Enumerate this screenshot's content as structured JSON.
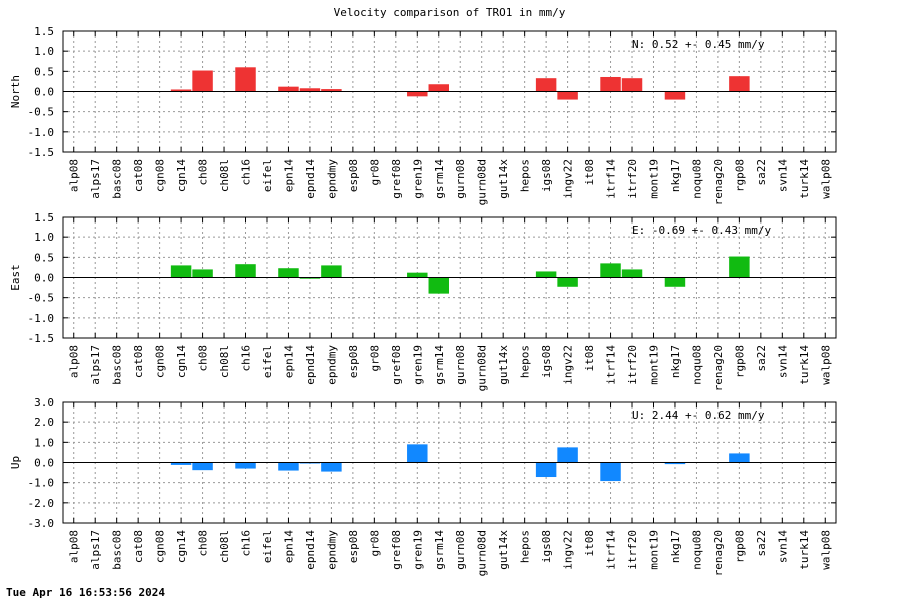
{
  "chart_data": [
    {
      "type": "bar",
      "title": "Velocity comparison of TRO1 in mm/y",
      "ylabel": "North",
      "ylim": [
        -1.5,
        1.5
      ],
      "yticks": [
        "1.5",
        "1.0",
        "0.5",
        "0.0",
        "-0.5",
        "-1.0",
        "-1.5"
      ],
      "annotation": "N:   0.52 +-  0.45 mm/y",
      "color": "#ee3333",
      "grid": true,
      "categories": [
        "alp08",
        "alps17",
        "basc08",
        "cat08",
        "cgn08",
        "cgn14",
        "ch08",
        "ch08l",
        "ch16",
        "eifel",
        "epn14",
        "epnd14",
        "epndmy",
        "esp08",
        "gr08",
        "gref08",
        "gren19",
        "gsrm14",
        "gurn08",
        "gurn08d",
        "gut14x",
        "hepos",
        "igs08",
        "ingv22",
        "it08",
        "itrf14",
        "itrf20",
        "mont19",
        "nkg17",
        "noqu08",
        "renag20",
        "rgp08",
        "sa22",
        "svn14",
        "turk14",
        "walp08"
      ],
      "values": [
        0,
        0,
        0,
        0,
        0,
        0.05,
        0.52,
        0,
        0.6,
        0,
        0.12,
        0.08,
        0.06,
        0,
        0,
        0,
        -0.12,
        0.18,
        0,
        0,
        0,
        0,
        0.33,
        -0.2,
        0,
        0.36,
        0.33,
        0,
        -0.2,
        0,
        0,
        0.38,
        0,
        0,
        0,
        0
      ]
    },
    {
      "type": "bar",
      "title": "",
      "ylabel": "East",
      "ylim": [
        -1.5,
        1.5
      ],
      "yticks": [
        "1.5",
        "1.0",
        "0.5",
        "0.0",
        "-0.5",
        "-1.0",
        "-1.5"
      ],
      "annotation": "E:  -0.69 +-  0.43 mm/y",
      "color": "#11bb11",
      "grid": true,
      "categories": [
        "alp08",
        "alps17",
        "basc08",
        "cat08",
        "cgn08",
        "cgn14",
        "ch08",
        "ch08l",
        "ch16",
        "eifel",
        "epn14",
        "epnd14",
        "epndmy",
        "esp08",
        "gr08",
        "gref08",
        "gren19",
        "gsrm14",
        "gurn08",
        "gurn08d",
        "gut14x",
        "hepos",
        "igs08",
        "ingv22",
        "it08",
        "itrf14",
        "itrf20",
        "mont19",
        "nkg17",
        "noqu08",
        "renag20",
        "rgp08",
        "sa22",
        "svn14",
        "turk14",
        "walp08"
      ],
      "values": [
        0,
        0,
        0,
        0,
        0,
        0.3,
        0.2,
        0,
        0.33,
        0,
        0.23,
        -0.03,
        0.3,
        0,
        0,
        0,
        0.12,
        -0.4,
        0,
        0,
        0,
        0,
        0.15,
        -0.23,
        0,
        0.35,
        0.2,
        0,
        -0.23,
        0,
        0,
        0.52,
        0,
        0,
        0,
        0
      ]
    },
    {
      "type": "bar",
      "title": "",
      "ylabel": "Up",
      "ylim": [
        -3.0,
        3.0
      ],
      "yticks": [
        "3.0",
        "2.0",
        "1.0",
        "0.0",
        "-1.0",
        "-2.0",
        "-3.0"
      ],
      "annotation": "U:   2.44 +-  0.62 mm/y",
      "color": "#1188ff",
      "grid": true,
      "categories": [
        "alp08",
        "alps17",
        "basc08",
        "cat08",
        "cgn08",
        "cgn14",
        "ch08",
        "ch08l",
        "ch16",
        "eifel",
        "epn14",
        "epnd14",
        "epndmy",
        "esp08",
        "gr08",
        "gref08",
        "gren19",
        "gsrm14",
        "gurn08",
        "gurn08d",
        "gut14x",
        "hepos",
        "igs08",
        "ingv22",
        "it08",
        "itrf14",
        "itrf20",
        "mont19",
        "nkg17",
        "noqu08",
        "renag20",
        "rgp08",
        "sa22",
        "svn14",
        "turk14",
        "walp08"
      ],
      "values": [
        0,
        0,
        0,
        0,
        0,
        -0.12,
        -0.38,
        0,
        -0.3,
        0,
        -0.4,
        -0.05,
        -0.45,
        0,
        0,
        0,
        0.9,
        0,
        0,
        0,
        0,
        0,
        -0.72,
        0.75,
        0,
        -0.92,
        0,
        0,
        -0.08,
        0,
        0,
        0.45,
        0,
        0,
        0,
        0
      ]
    }
  ],
  "footer": {
    "timestamp": "Tue Apr 16 16:53:56 2024"
  }
}
